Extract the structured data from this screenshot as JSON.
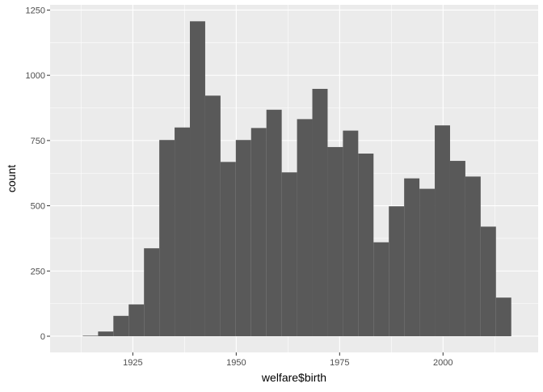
{
  "chart_data": {
    "type": "bar",
    "title": "",
    "xlabel": "welfare$birth",
    "ylabel": "count",
    "xlim": [
      1905,
      2023
    ],
    "ylim": [
      -62,
      1270
    ],
    "x_ticks": [
      1925,
      1950,
      1975,
      2000
    ],
    "y_ticks": [
      0,
      250,
      500,
      750,
      1000,
      1250
    ],
    "x_tick_labels": [
      "1925",
      "1950",
      "1975",
      "2000"
    ],
    "y_tick_labels": [
      "0",
      "250",
      "500",
      "750",
      "1000",
      "1250"
    ],
    "grid": true,
    "bin_width": 3.7,
    "bins": [
      {
        "start": 1912.9,
        "end": 1916.6,
        "count": 2
      },
      {
        "start": 1916.6,
        "end": 1920.3,
        "count": 18
      },
      {
        "start": 1920.3,
        "end": 1924.0,
        "count": 78
      },
      {
        "start": 1924.0,
        "end": 1927.7,
        "count": 122
      },
      {
        "start": 1927.7,
        "end": 1931.4,
        "count": 337
      },
      {
        "start": 1931.4,
        "end": 1935.1,
        "count": 752
      },
      {
        "start": 1935.1,
        "end": 1938.8,
        "count": 800
      },
      {
        "start": 1938.8,
        "end": 1942.5,
        "count": 1207
      },
      {
        "start": 1942.5,
        "end": 1946.2,
        "count": 922
      },
      {
        "start": 1946.2,
        "end": 1949.9,
        "count": 668
      },
      {
        "start": 1949.9,
        "end": 1953.6,
        "count": 752
      },
      {
        "start": 1953.6,
        "end": 1957.3,
        "count": 798
      },
      {
        "start": 1957.3,
        "end": 1961.0,
        "count": 868
      },
      {
        "start": 1961.0,
        "end": 1964.7,
        "count": 628
      },
      {
        "start": 1964.7,
        "end": 1968.4,
        "count": 832
      },
      {
        "start": 1968.4,
        "end": 1972.1,
        "count": 948
      },
      {
        "start": 1972.1,
        "end": 1975.8,
        "count": 725
      },
      {
        "start": 1975.8,
        "end": 1979.5,
        "count": 788
      },
      {
        "start": 1979.5,
        "end": 1983.2,
        "count": 700
      },
      {
        "start": 1983.2,
        "end": 1986.9,
        "count": 360
      },
      {
        "start": 1986.9,
        "end": 1990.6,
        "count": 498
      },
      {
        "start": 1990.6,
        "end": 1994.3,
        "count": 605
      },
      {
        "start": 1994.3,
        "end": 1998.0,
        "count": 565
      },
      {
        "start": 1998.0,
        "end": 2001.7,
        "count": 808
      },
      {
        "start": 2001.7,
        "end": 2005.4,
        "count": 672
      },
      {
        "start": 2005.4,
        "end": 2009.1,
        "count": 612
      },
      {
        "start": 2009.1,
        "end": 2012.8,
        "count": 420
      },
      {
        "start": 2012.8,
        "end": 2016.5,
        "count": 148
      }
    ],
    "colors": {
      "panel_background": "#ebebeb",
      "grid_major": "#ffffff",
      "bar_fill": "#595959",
      "tick_text": "#4d4d4d",
      "tick_mark": "#333333",
      "axis_title": "#000000"
    }
  }
}
